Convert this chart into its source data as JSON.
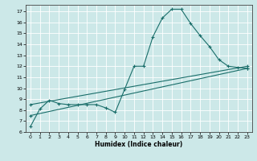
{
  "xlabel": "Humidex (Indice chaleur)",
  "ylabel": "",
  "bg_color": "#cce8e8",
  "grid_color": "#ffffff",
  "line_color": "#1a6e6a",
  "xlim": [
    -0.5,
    23.5
  ],
  "ylim": [
    6,
    17.6
  ],
  "xticks": [
    0,
    1,
    2,
    3,
    4,
    5,
    6,
    7,
    8,
    9,
    10,
    11,
    12,
    13,
    14,
    15,
    16,
    17,
    18,
    19,
    20,
    21,
    22,
    23
  ],
  "yticks": [
    6,
    7,
    8,
    9,
    10,
    11,
    12,
    13,
    14,
    15,
    16,
    17
  ],
  "line1_x": [
    0,
    1,
    2,
    3,
    4,
    5,
    6,
    7,
    8,
    9,
    10,
    11,
    12,
    13,
    14,
    15,
    16,
    17,
    18,
    19,
    20,
    21,
    22,
    23
  ],
  "line1_y": [
    6.5,
    8.1,
    8.9,
    8.6,
    8.5,
    8.5,
    8.5,
    8.5,
    8.2,
    7.8,
    9.9,
    12.0,
    12.0,
    14.7,
    16.4,
    17.2,
    17.2,
    15.9,
    14.8,
    13.8,
    12.6,
    12.0,
    11.9,
    11.8
  ],
  "line2_x": [
    0,
    23
  ],
  "line2_y": [
    7.5,
    11.8
  ],
  "line3_x": [
    0,
    23
  ],
  "line3_y": [
    8.5,
    12.0
  ],
  "marker": "+"
}
